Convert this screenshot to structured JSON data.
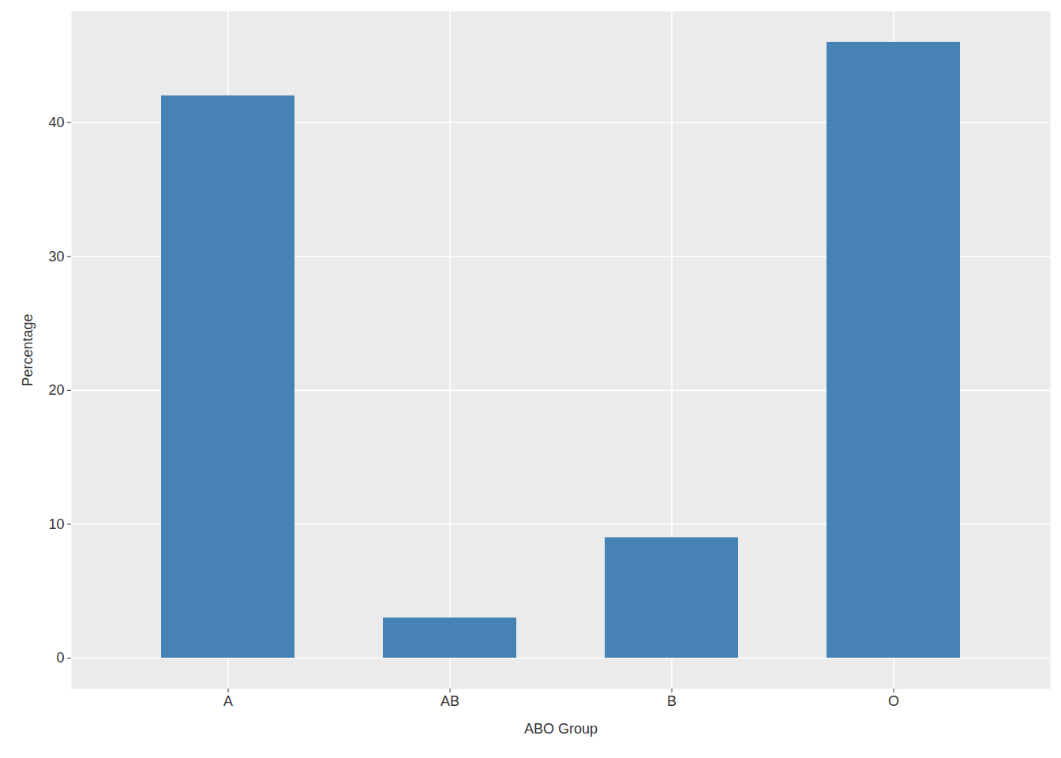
{
  "chart_data": {
    "type": "bar",
    "x_label": "ABO Group",
    "y_label": "Percentage",
    "categories": [
      "A",
      "AB",
      "B",
      "O"
    ],
    "values": [
      42,
      3,
      9,
      46
    ],
    "color": "#4682B4",
    "ylim": [
      -2.3,
      48.3
    ],
    "yticks": [
      0,
      10,
      20,
      30,
      40
    ],
    "grid": true
  }
}
